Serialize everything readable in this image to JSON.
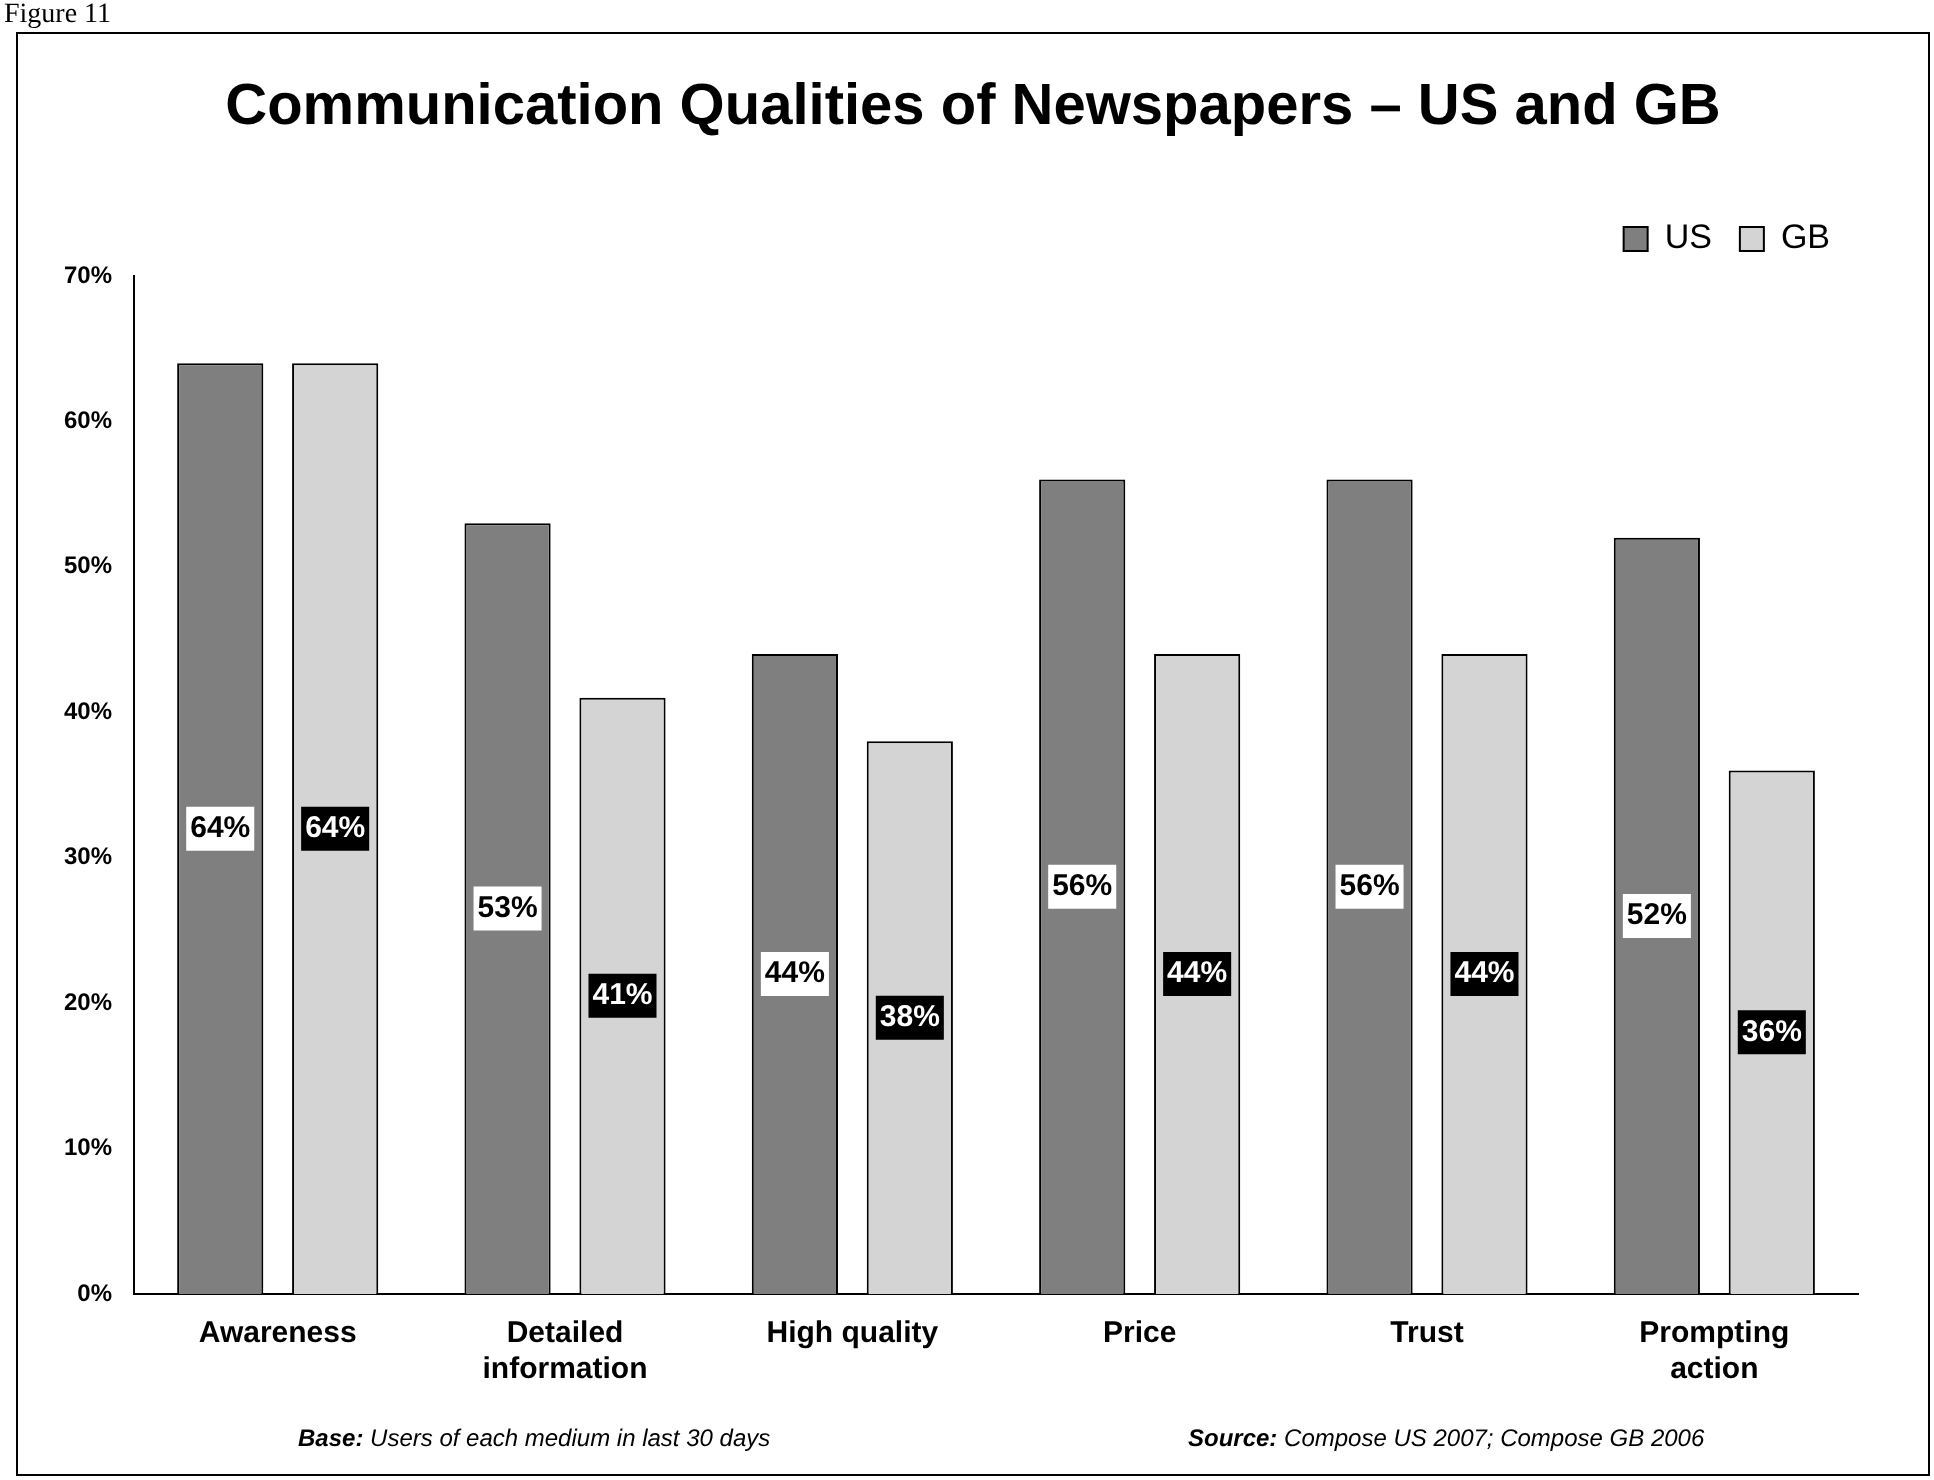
{
  "chart_data": {
    "type": "bar",
    "title": "Communication Qualities of Newspapers – US and GB",
    "categories": [
      "Awareness",
      "Detailed information",
      "High quality",
      "Price",
      "Trust",
      "Prompting action"
    ],
    "series": [
      {
        "name": "US",
        "color": "#7f7f7f",
        "values": [
          64,
          53,
          44,
          56,
          56,
          52
        ],
        "value_labels": [
          "64%",
          "53%",
          "44%",
          "56%",
          "56%",
          "52%"
        ]
      },
      {
        "name": "GB",
        "color": "#d4d4d4",
        "values": [
          64,
          41,
          38,
          44,
          44,
          36
        ],
        "value_labels": [
          "64%",
          "41%",
          "38%",
          "44%",
          "44%",
          "36%"
        ]
      }
    ],
    "ylim": [
      0,
      70
    ],
    "yticks": [
      {
        "value": 0,
        "label": "0%"
      },
      {
        "value": 10,
        "label": "10%"
      },
      {
        "value": 20,
        "label": "20%"
      },
      {
        "value": 30,
        "label": "30%"
      },
      {
        "value": 40,
        "label": "40%"
      },
      {
        "value": 50,
        "label": "50%"
      },
      {
        "value": 60,
        "label": "60%"
      },
      {
        "value": 70,
        "label": "70%"
      }
    ],
    "grid": false,
    "legend": "top right",
    "annotations": [
      "Figure 11",
      "Base: Users of each medium in last 30 days",
      "Source: Compose US 2007; Compose GB 2006"
    ]
  }
}
